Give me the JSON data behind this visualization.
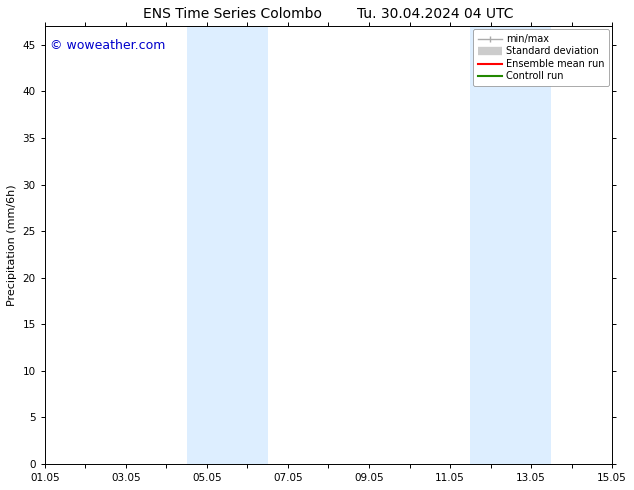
{
  "title_left": "ENS Time Series Colombo",
  "title_right": "Tu. 30.04.2024 04 UTC",
  "ylabel": "Precipitation (mm/6h)",
  "watermark": "© woweather.com",
  "watermark_color": "#0000cc",
  "ylim": [
    0,
    47
  ],
  "yticks": [
    0,
    5,
    10,
    15,
    20,
    25,
    30,
    35,
    40,
    45
  ],
  "xtick_labels": [
    "01.05",
    "03.05",
    "05.05",
    "07.05",
    "09.05",
    "11.05",
    "13.05",
    "15.05"
  ],
  "xtick_positions": [
    0,
    2,
    4,
    6,
    8,
    10,
    12,
    14
  ],
  "xlim": [
    0,
    14
  ],
  "shaded_regions": [
    {
      "xmin": 3.5,
      "xmax": 5.5,
      "color": "#ddeeff"
    },
    {
      "xmin": 10.5,
      "xmax": 12.5,
      "color": "#ddeeff"
    }
  ],
  "bg_color": "#ffffff",
  "legend_entries": [
    {
      "label": "min/max",
      "color": "#aaaaaa",
      "lw": 1.0,
      "type": "minmax"
    },
    {
      "label": "Standard deviation",
      "color": "#cccccc",
      "lw": 6,
      "type": "band"
    },
    {
      "label": "Ensemble mean run",
      "color": "#ff0000",
      "lw": 1.5,
      "type": "line"
    },
    {
      "label": "Controll run",
      "color": "#228800",
      "lw": 1.5,
      "type": "line"
    }
  ],
  "title_fontsize": 10,
  "axis_fontsize": 8,
  "tick_fontsize": 7.5,
  "watermark_fontsize": 9,
  "legend_fontsize": 7
}
